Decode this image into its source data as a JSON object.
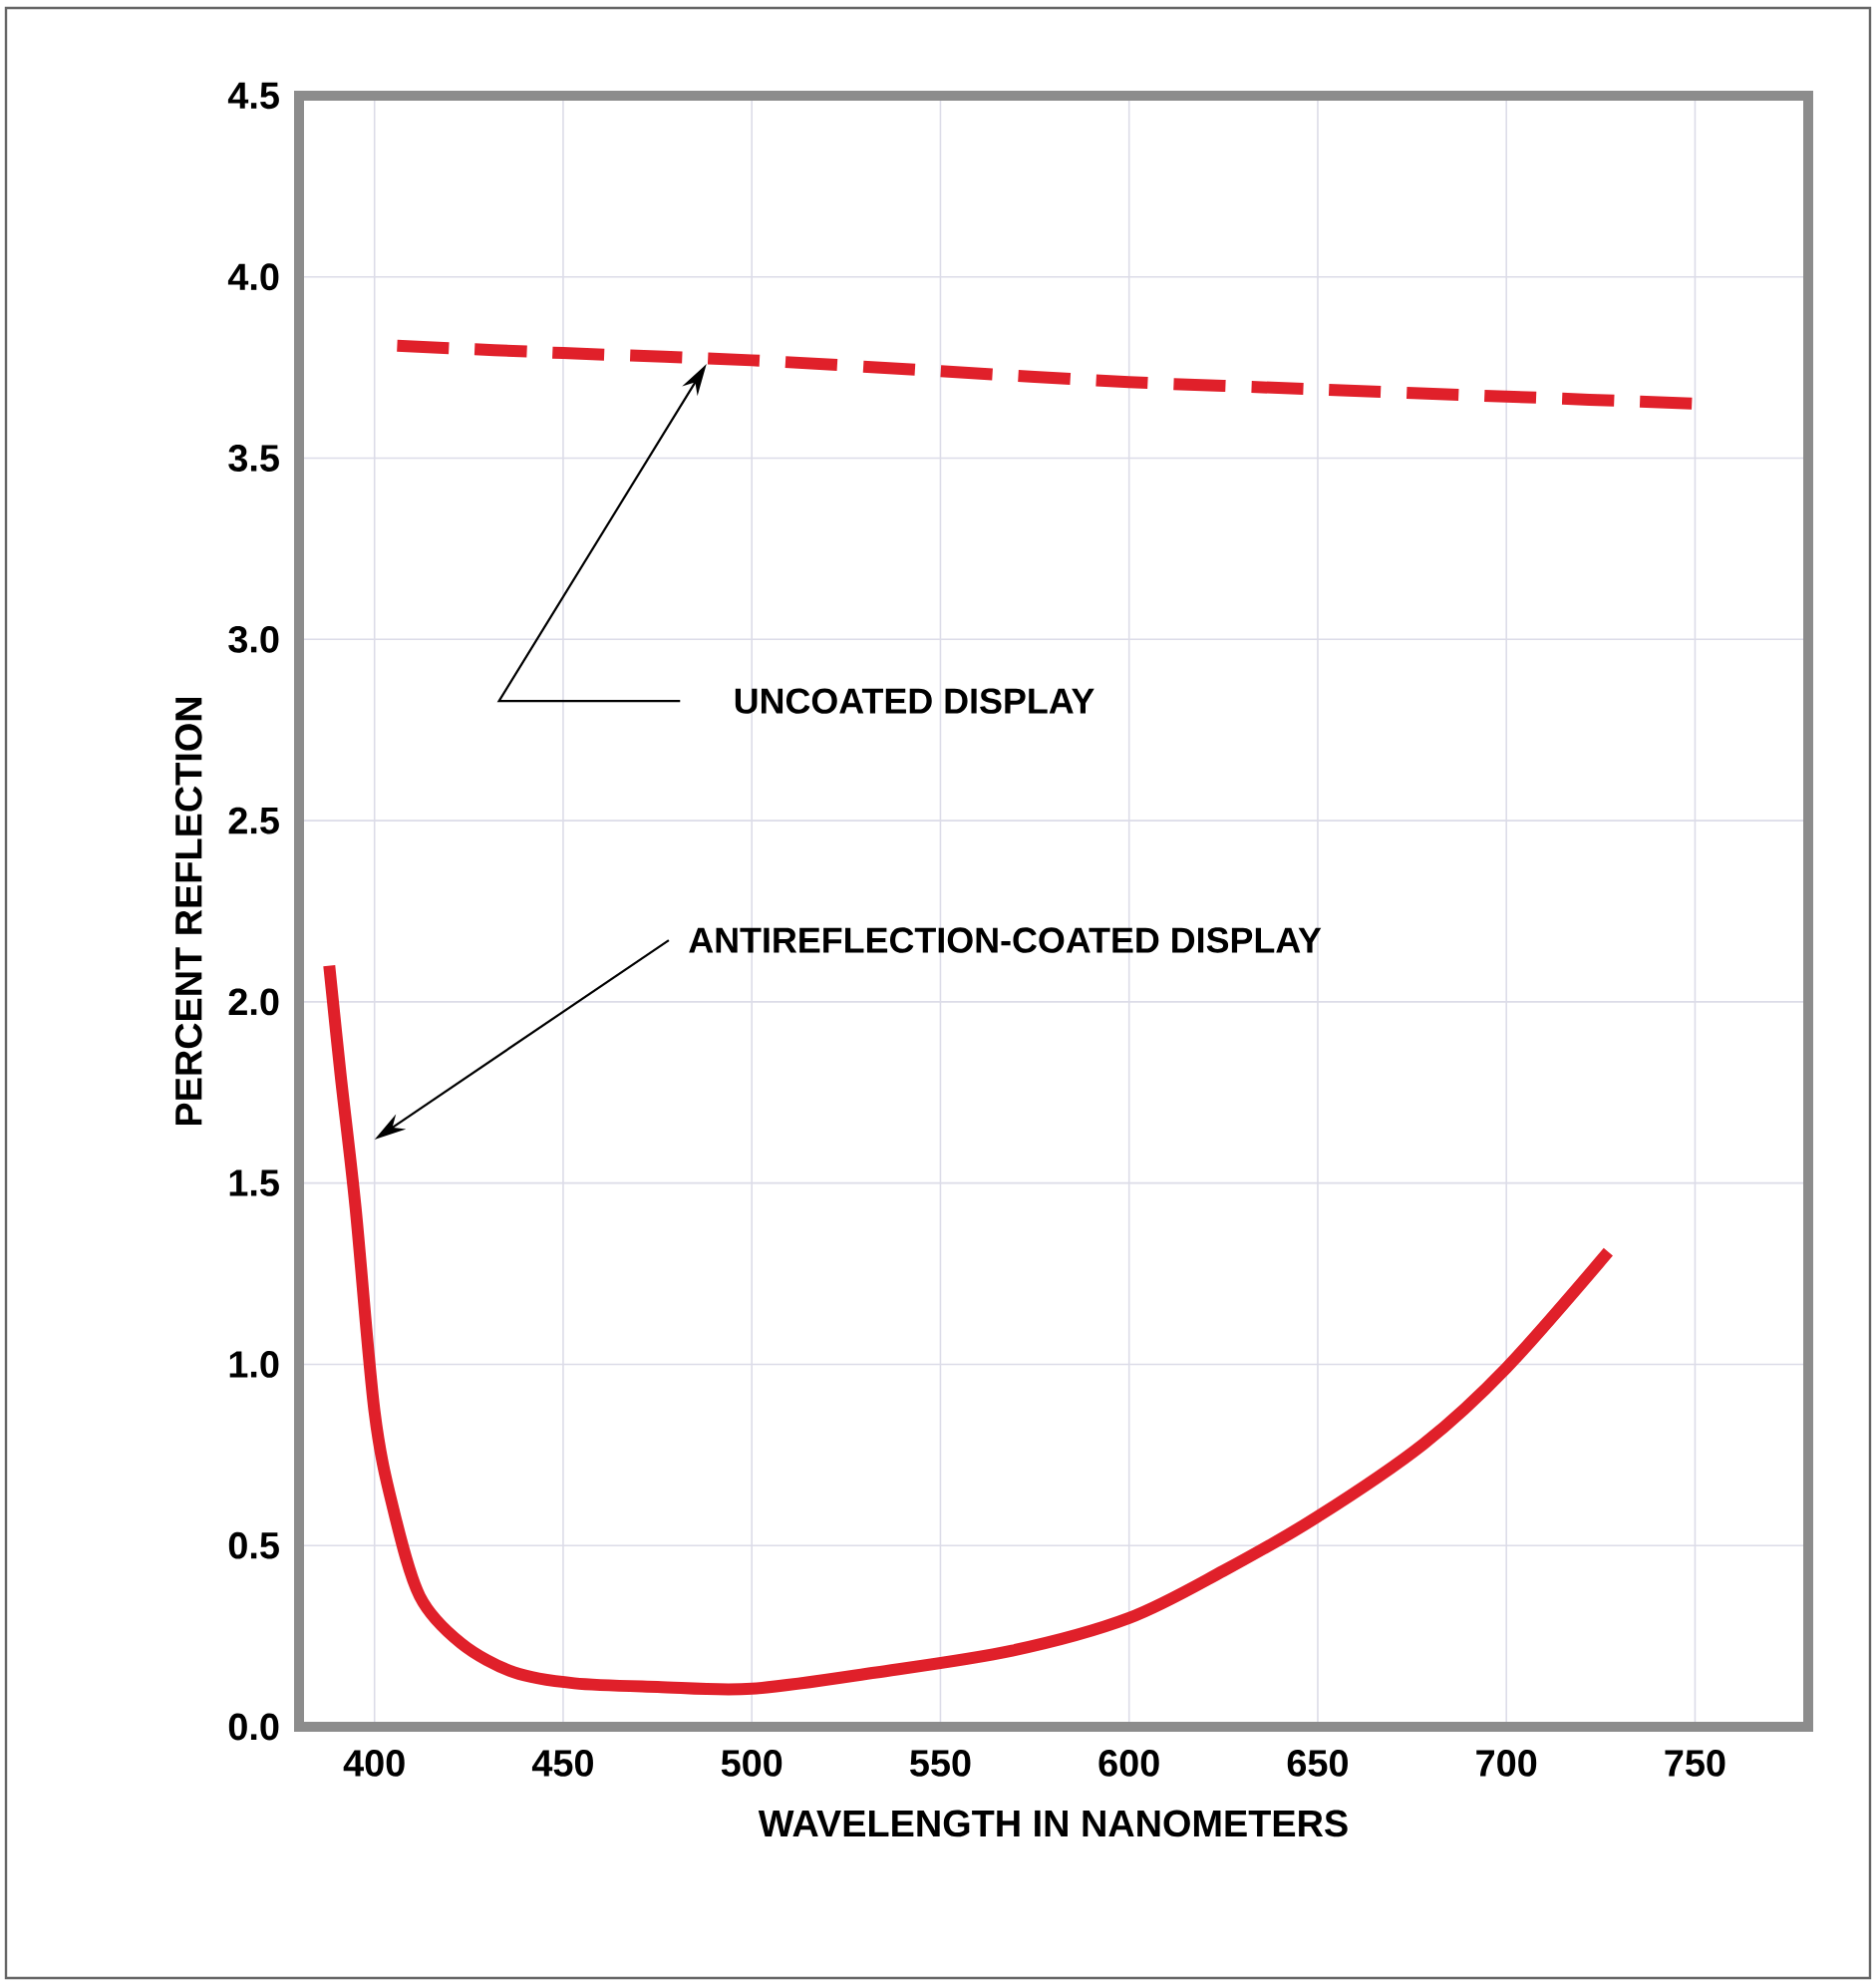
{
  "chart_data": {
    "type": "line",
    "xlabel": "WAVELENGTH IN NANOMETERS",
    "ylabel": "PERCENT REFLECTION",
    "xlim": [
      380,
      780
    ],
    "ylim": [
      0,
      4.5
    ],
    "xticks": [
      400,
      450,
      500,
      550,
      600,
      650,
      700,
      750
    ],
    "yticks": [
      {
        "value": 0,
        "label": "0.0"
      },
      {
        "value": 0.5,
        "label": "0.5"
      },
      {
        "value": 1,
        "label": "1.0"
      },
      {
        "value": 1.5,
        "label": "1.5"
      },
      {
        "value": 2,
        "label": "2.0"
      },
      {
        "value": 2.5,
        "label": "2.5"
      },
      {
        "value": 3,
        "label": "3.0"
      },
      {
        "value": 3.5,
        "label": "3.5"
      },
      {
        "value": 4,
        "label": "4.0"
      },
      {
        "value": 4.5,
        "label": "4.5"
      }
    ],
    "grid": true,
    "series": [
      {
        "color": "#e0202a",
        "line_style": "dashed",
        "x": [
          406,
          450,
          500,
          550,
          600,
          650,
          700,
          751
        ],
        "values": [
          3.81,
          3.79,
          3.77,
          3.74,
          3.71,
          3.69,
          3.67,
          3.65
        ]
      },
      {
        "color": "#e0202a",
        "line_style": "solid",
        "x": [
          388,
          391,
          395,
          400,
          405,
          412,
          423,
          437,
          453,
          475,
          500,
          533,
          569,
          600,
          625,
          650,
          678,
          700,
          727
        ],
        "values": [
          2.1,
          1.8,
          1.43,
          0.87,
          0.6,
          0.36,
          0.23,
          0.15,
          0.12,
          0.11,
          0.105,
          0.15,
          0.21,
          0.3,
          0.43,
          0.58,
          0.78,
          0.99,
          1.31
        ]
      }
    ],
    "annotations": [
      "UNCOATED DISPLAY",
      "ANTIREFLECTION-COATED DISPLAY"
    ]
  }
}
